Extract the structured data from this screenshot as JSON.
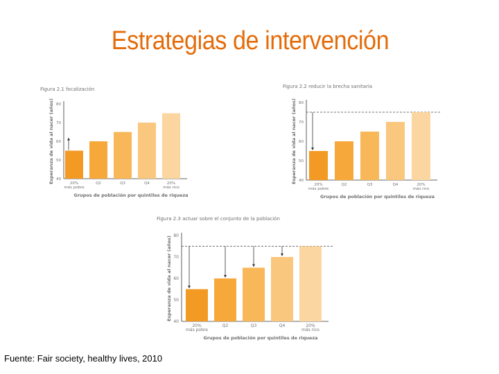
{
  "slide": {
    "title": "Estrategias de intervención",
    "source": "Fuente: Fair society, healthy lives, 2010"
  },
  "colors": {
    "title": "#e46c0a",
    "bars": [
      "#f39a24",
      "#f6a93a",
      "#f8b85a",
      "#fac77e",
      "#fcd6a0"
    ],
    "axis": "#333333",
    "text": "#6d6e71"
  },
  "chart_data": [
    {
      "type": "bar",
      "title": "Figura 2.1 focalización",
      "categories": [
        "20% más pobre",
        "Q2",
        "Q3",
        "Q4",
        "20% más rico"
      ],
      "values": [
        55,
        60,
        65,
        70,
        75
      ],
      "xlabel": "Grupos de población por quintiles de riqueza",
      "ylabel": "Esperanza de vida al nacer (años)",
      "yticks": [
        40,
        50,
        60,
        70,
        80
      ],
      "ylim": [
        40,
        80
      ],
      "reference_line": null,
      "arrows_to": [
        0
      ]
    },
    {
      "type": "bar",
      "title": "Figura 2.2 reducir la brecha sanitaria",
      "categories": [
        "20% más pobre",
        "Q2",
        "Q3",
        "Q4",
        "20% más rico"
      ],
      "values": [
        55,
        60,
        65,
        70,
        75
      ],
      "xlabel": "Grupos de población por quintiles de riqueza",
      "ylabel": "Esperanza de vida al nacer (años)",
      "yticks": [
        40,
        50,
        60,
        70,
        80
      ],
      "ylim": [
        40,
        80
      ],
      "reference_line": 75,
      "arrows_to": [
        0
      ]
    },
    {
      "type": "bar",
      "title": "Figura 2.3 actuar sobre el conjunto de la población",
      "categories": [
        "20% más pobre",
        "Q2",
        "Q3",
        "Q4",
        "20% más rico"
      ],
      "values": [
        55,
        60,
        65,
        70,
        75
      ],
      "xlabel": "Grupos de población por quintiles de riqueza",
      "ylabel": "Esperanza de vida al nacer (años)",
      "yticks": [
        40,
        50,
        60,
        70,
        80
      ],
      "ylim": [
        40,
        80
      ],
      "reference_line": 75,
      "arrows_to": [
        0,
        1,
        2,
        3
      ]
    }
  ]
}
